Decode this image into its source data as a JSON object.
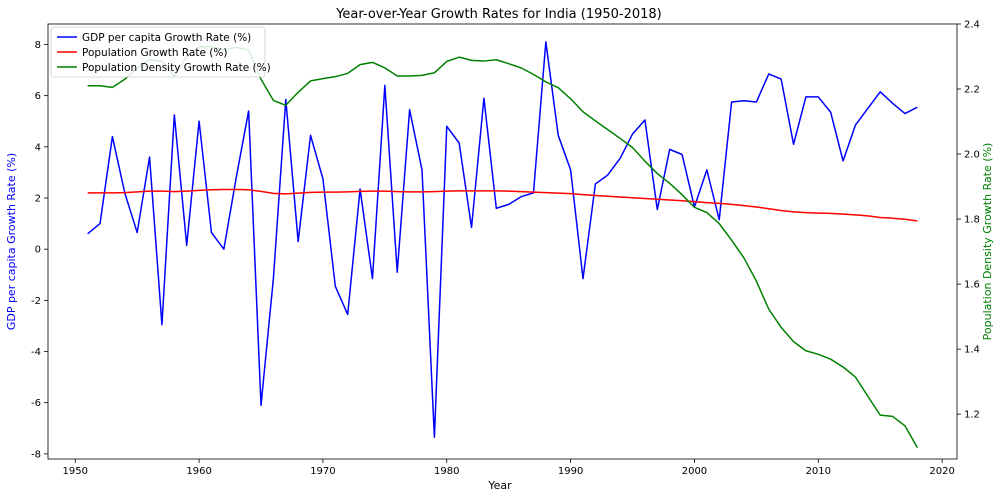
{
  "chart_data": {
    "type": "line",
    "title": "Year-over-Year Growth Rates for India (1950-2018)",
    "xlabel": "Year",
    "ylabel_left": "GDP per capita Growth Rate (%)",
    "ylabel_right": "Population Density Growth Rate (%)",
    "xlim": [
      1947.8,
      2021.2
    ],
    "ylim_left": [
      -8.2,
      8.8
    ],
    "ylim_right": [
      1.062,
      2.4
    ],
    "x_ticks": [
      1950,
      1960,
      1970,
      1980,
      1990,
      2000,
      2010,
      2020
    ],
    "y_ticks_left": [
      -8,
      -6,
      -4,
      -2,
      0,
      2,
      4,
      6,
      8
    ],
    "y_ticks_right": [
      1.2,
      1.4,
      1.6,
      1.8,
      2.0,
      2.2,
      2.4
    ],
    "grid": false,
    "legend_position": "upper-left",
    "colors": {
      "gdp": "#0000ff",
      "population": "#ff0000",
      "density": "#008000",
      "axis_left_label": "#0000ff",
      "axis_right_label": "#008000"
    },
    "x": [
      1951,
      1952,
      1953,
      1954,
      1955,
      1956,
      1957,
      1958,
      1959,
      1960,
      1961,
      1962,
      1963,
      1964,
      1965,
      1966,
      1967,
      1968,
      1969,
      1970,
      1971,
      1972,
      1973,
      1974,
      1975,
      1976,
      1977,
      1978,
      1979,
      1980,
      1981,
      1982,
      1983,
      1984,
      1985,
      1986,
      1987,
      1988,
      1989,
      1990,
      1991,
      1992,
      1993,
      1994,
      1995,
      1996,
      1997,
      1998,
      1999,
      2000,
      2001,
      2002,
      2003,
      2004,
      2005,
      2006,
      2007,
      2008,
      2009,
      2010,
      2011,
      2012,
      2013,
      2014,
      2015,
      2016,
      2017,
      2018
    ],
    "series": [
      {
        "name": "GDP per capita Growth Rate (%)",
        "axis": "left",
        "color": "#0000ff",
        "values": [
          0.6,
          1.0,
          4.4,
          2.2,
          0.65,
          3.6,
          -2.95,
          5.25,
          0.15,
          5.0,
          0.65,
          0.0,
          2.8,
          5.4,
          -6.1,
          -1.15,
          5.85,
          0.3,
          4.45,
          2.75,
          -1.45,
          -2.55,
          2.35,
          -1.15,
          6.4,
          -0.9,
          5.45,
          3.1,
          -7.35,
          4.8,
          4.15,
          0.85,
          5.9,
          1.6,
          1.75,
          2.05,
          2.2,
          8.1,
          4.45,
          3.1,
          -1.15,
          2.55,
          2.9,
          3.55,
          4.5,
          5.05,
          1.55,
          3.9,
          3.7,
          1.65,
          3.1,
          1.15,
          5.75,
          5.8,
          5.75,
          6.85,
          6.65,
          4.1,
          5.95,
          5.95,
          5.35,
          3.45,
          4.85,
          5.5,
          6.15,
          5.7,
          5.3,
          5.55
        ]
      },
      {
        "name": "Population Growth Rate (%)",
        "axis": "left",
        "color": "#ff0000",
        "values": [
          2.2,
          2.2,
          2.2,
          2.21,
          2.24,
          2.27,
          2.27,
          2.25,
          2.27,
          2.3,
          2.32,
          2.33,
          2.33,
          2.32,
          2.26,
          2.18,
          2.16,
          2.19,
          2.22,
          2.23,
          2.23,
          2.24,
          2.26,
          2.27,
          2.27,
          2.25,
          2.24,
          2.24,
          2.25,
          2.27,
          2.28,
          2.28,
          2.28,
          2.28,
          2.27,
          2.25,
          2.23,
          2.21,
          2.19,
          2.17,
          2.13,
          2.1,
          2.07,
          2.04,
          2.01,
          1.98,
          1.95,
          1.92,
          1.89,
          1.86,
          1.82,
          1.79,
          1.75,
          1.7,
          1.65,
          1.58,
          1.51,
          1.46,
          1.43,
          1.41,
          1.4,
          1.37,
          1.34,
          1.3,
          1.24,
          1.21,
          1.17,
          1.1
        ]
      },
      {
        "name": "Population Density Growth Rate (%)",
        "axis": "right",
        "color": "#008000",
        "values": [
          2.21,
          2.21,
          2.205,
          2.23,
          2.265,
          2.29,
          2.285,
          2.24,
          2.3,
          2.33,
          2.33,
          2.32,
          2.328,
          2.32,
          2.23,
          2.165,
          2.15,
          2.19,
          2.225,
          2.232,
          2.238,
          2.248,
          2.275,
          2.282,
          2.265,
          2.24,
          2.24,
          2.242,
          2.25,
          2.285,
          2.298,
          2.288,
          2.286,
          2.29,
          2.278,
          2.265,
          2.245,
          2.222,
          2.204,
          2.17,
          2.13,
          2.102,
          2.075,
          2.048,
          2.02,
          1.978,
          1.94,
          1.91,
          1.875,
          1.836,
          1.82,
          1.786,
          1.735,
          1.68,
          1.609,
          1.523,
          1.467,
          1.423,
          1.395,
          1.384,
          1.369,
          1.345,
          1.314,
          1.255,
          1.197,
          1.193,
          1.164,
          1.097
        ]
      }
    ]
  }
}
